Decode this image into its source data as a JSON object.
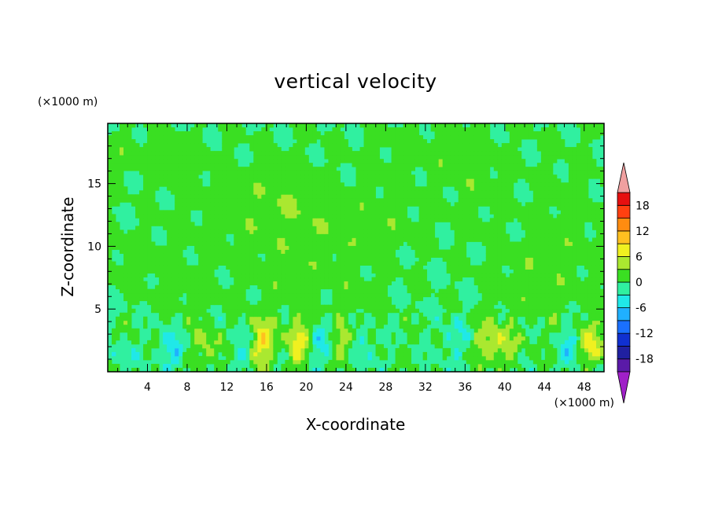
{
  "chart_data": {
    "type": "heatmap",
    "title": "vertical velocity",
    "xlabel": "X-coordinate",
    "ylabel": "Z-coordinate",
    "x_unit": "(×1000 m)",
    "y_unit": "(×1000 m)",
    "xlim": [
      0,
      50
    ],
    "ylim": [
      0,
      19.8
    ],
    "x_ticks": [
      4,
      8,
      12,
      16,
      20,
      24,
      28,
      32,
      36,
      40,
      44,
      48
    ],
    "y_ticks": [
      5,
      10,
      15
    ],
    "colorbar": {
      "levels": [
        -21,
        -18,
        -15,
        -12,
        -9,
        -6,
        -3,
        0,
        3,
        6,
        9,
        12,
        15,
        18,
        21
      ],
      "labels": [
        18,
        12,
        6,
        0,
        -6,
        -12,
        -18
      ],
      "colors": [
        "#a020c8",
        "#5a1aa8",
        "#2020a0",
        "#1030d0",
        "#1a70ff",
        "#20b0ff",
        "#20e8e8",
        "#30f0a0",
        "#3adf22",
        "#aae830",
        "#f0f020",
        "#ffc020",
        "#ff8c10",
        "#ff4010",
        "#e61010",
        "#f0a0a0"
      ],
      "extend": "both"
    },
    "background_value": 0,
    "features": [
      {
        "x": 2,
        "z": 17.5,
        "w": 4,
        "h": 1.5,
        "v": 1.5
      },
      {
        "x": 7,
        "z": 16.5,
        "w": 3,
        "h": 2,
        "v": 1.5
      },
      {
        "x": 13,
        "z": 12.5,
        "w": 6,
        "h": 4,
        "v": 1.5
      },
      {
        "x": 18,
        "z": 14,
        "w": 4,
        "h": 3,
        "v": 1.5
      },
      {
        "x": 22,
        "z": 11,
        "w": 5,
        "h": 3,
        "v": 1.5
      },
      {
        "x": 28,
        "z": 12.5,
        "w": 4,
        "h": 3,
        "v": 1.5
      },
      {
        "x": 32,
        "z": 17.5,
        "w": 6,
        "h": 2,
        "v": 1.5
      },
      {
        "x": 37,
        "z": 15,
        "w": 3,
        "h": 4,
        "v": 1.5
      },
      {
        "x": 46,
        "z": 11,
        "w": 4,
        "h": 6,
        "v": 1.5
      },
      {
        "x": 3,
        "z": 9,
        "w": 4,
        "h": 2,
        "v": 1.5
      },
      {
        "x": 8,
        "z": 6.5,
        "w": 3,
        "h": 2,
        "v": 1.5
      },
      {
        "x": 18,
        "z": 7.5,
        "w": 4,
        "h": 2,
        "v": 1.5
      },
      {
        "x": 25,
        "z": 6,
        "w": 3,
        "h": 2,
        "v": 1.5
      },
      {
        "x": 42,
        "z": 7,
        "w": 4,
        "h": 3,
        "v": 1.5
      },
      {
        "x": 10,
        "z": 2,
        "w": 1.5,
        "h": 1.5,
        "v": 4
      },
      {
        "x": 15.5,
        "z": 2.4,
        "w": 1.2,
        "h": 2,
        "v": 8
      },
      {
        "x": 19.2,
        "z": 2.4,
        "w": 1.2,
        "h": 2,
        "v": 7
      },
      {
        "x": 23.6,
        "z": 2.2,
        "w": 0.8,
        "h": 1.5,
        "v": 5
      },
      {
        "x": 39,
        "z": 2.3,
        "w": 2,
        "h": 1.7,
        "v": 6
      },
      {
        "x": 48.8,
        "z": 2.2,
        "w": 1.3,
        "h": 1.6,
        "v": 7
      },
      {
        "x": 6.5,
        "z": 1.8,
        "w": 1.2,
        "h": 1.5,
        "v": -5
      },
      {
        "x": 13.5,
        "z": 2,
        "w": 1.2,
        "h": 1.5,
        "v": -3
      },
      {
        "x": 21.5,
        "z": 2,
        "w": 1.2,
        "h": 1.5,
        "v": -4
      },
      {
        "x": 26,
        "z": 2,
        "w": 1,
        "h": 1.5,
        "v": -3
      },
      {
        "x": 35,
        "z": 2.5,
        "w": 1.5,
        "h": 2,
        "v": -3
      },
      {
        "x": 46.5,
        "z": 2,
        "w": 1.2,
        "h": 1.6,
        "v": -4
      },
      {
        "x": 1.5,
        "z": 1.2,
        "w": 1,
        "h": 1.2,
        "v": -3
      }
    ]
  }
}
